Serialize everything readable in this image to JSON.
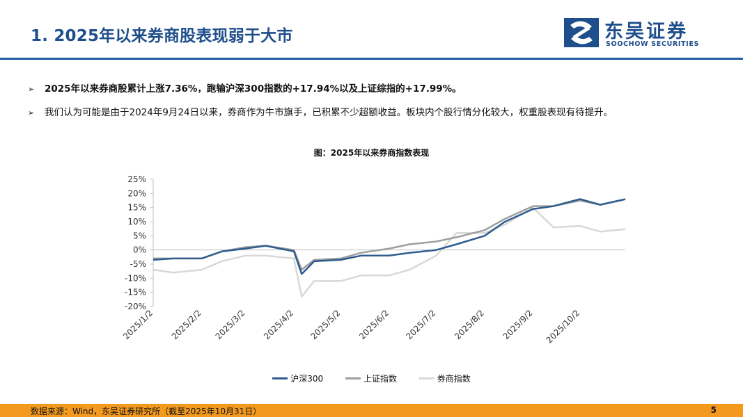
{
  "header": {
    "title": "1. 2025年以来券商股表现弱于大市",
    "logo_cn": "东吴证券",
    "logo_en": "SOOCHOW SECURITIES"
  },
  "bullets": [
    "2025年以来券商股累计上涨7.36%，跑输沪深300指数的+17.94%以及上证综指的+17.99%。",
    "我们认为可能是由于2024年9月24日以来，券商作为牛市旗手，已积累不少超额收益。板块内个股行情分化较大，权重股表现有待提升。"
  ],
  "footer": {
    "source": "数据来源：Wind，东吴证券研究所（截至2025年10月31日）",
    "page": "5"
  },
  "colors": {
    "brand": "#1f4e8c",
    "accent": "#f39a1e",
    "rule": "#1f5d9e"
  },
  "chart_data": {
    "type": "line",
    "title": "图：2025年以来券商指数表现",
    "xlabel": "",
    "ylabel": "",
    "ylim": [
      -20,
      25
    ],
    "yticks": [
      "25%",
      "20%",
      "15%",
      "10%",
      "5%",
      "0%",
      "-5%",
      "-10%",
      "-15%",
      "-20%"
    ],
    "xticks": [
      "2025/1/2",
      "2025/2/2",
      "2025/3/2",
      "2025/4/2",
      "2025/5/2",
      "2025/6/2",
      "2025/7/2",
      "2025/8/2",
      "2025/9/2",
      "2025/10/2"
    ],
    "x": [
      "2025/1/2",
      "2025/1/15",
      "2025/2/2",
      "2025/2/15",
      "2025/3/2",
      "2025/3/15",
      "2025/4/2",
      "2025/4/7",
      "2025/4/15",
      "2025/5/2",
      "2025/5/15",
      "2025/6/2",
      "2025/6/15",
      "2025/7/2",
      "2025/7/15",
      "2025/8/2",
      "2025/8/15",
      "2025/9/2",
      "2025/9/15",
      "2025/10/2",
      "2025/10/15",
      "2025/10/31"
    ],
    "grid": false,
    "legend": "bottom",
    "series": [
      {
        "name": "沪深300",
        "color": "#2e5c8f",
        "values": [
          -3.5,
          -3.0,
          -3.0,
          -0.5,
          0.5,
          1.5,
          -0.5,
          -8.5,
          -4.0,
          -3.5,
          -2.0,
          -2.0,
          -1.0,
          0.0,
          2.0,
          5.0,
          10.0,
          14.5,
          15.5,
          18.0,
          16.0,
          17.94
        ]
      },
      {
        "name": "上证指数",
        "color": "#9e9e9e",
        "values": [
          -3.0,
          -3.0,
          -3.0,
          -0.5,
          1.0,
          1.5,
          0.0,
          -7.0,
          -3.5,
          -3.0,
          -1.0,
          0.5,
          2.0,
          3.0,
          4.5,
          7.0,
          11.0,
          15.5,
          15.5,
          17.5,
          16.0,
          17.99
        ]
      },
      {
        "name": "券商指数",
        "color": "#d8d8d8",
        "values": [
          -7.0,
          -8.0,
          -7.0,
          -4.0,
          -2.0,
          -2.0,
          -3.0,
          -16.5,
          -11.0,
          -11.0,
          -9.0,
          -9.0,
          -7.0,
          -2.0,
          6.0,
          6.0,
          9.0,
          15.0,
          8.0,
          8.5,
          6.5,
          7.36
        ]
      }
    ]
  }
}
